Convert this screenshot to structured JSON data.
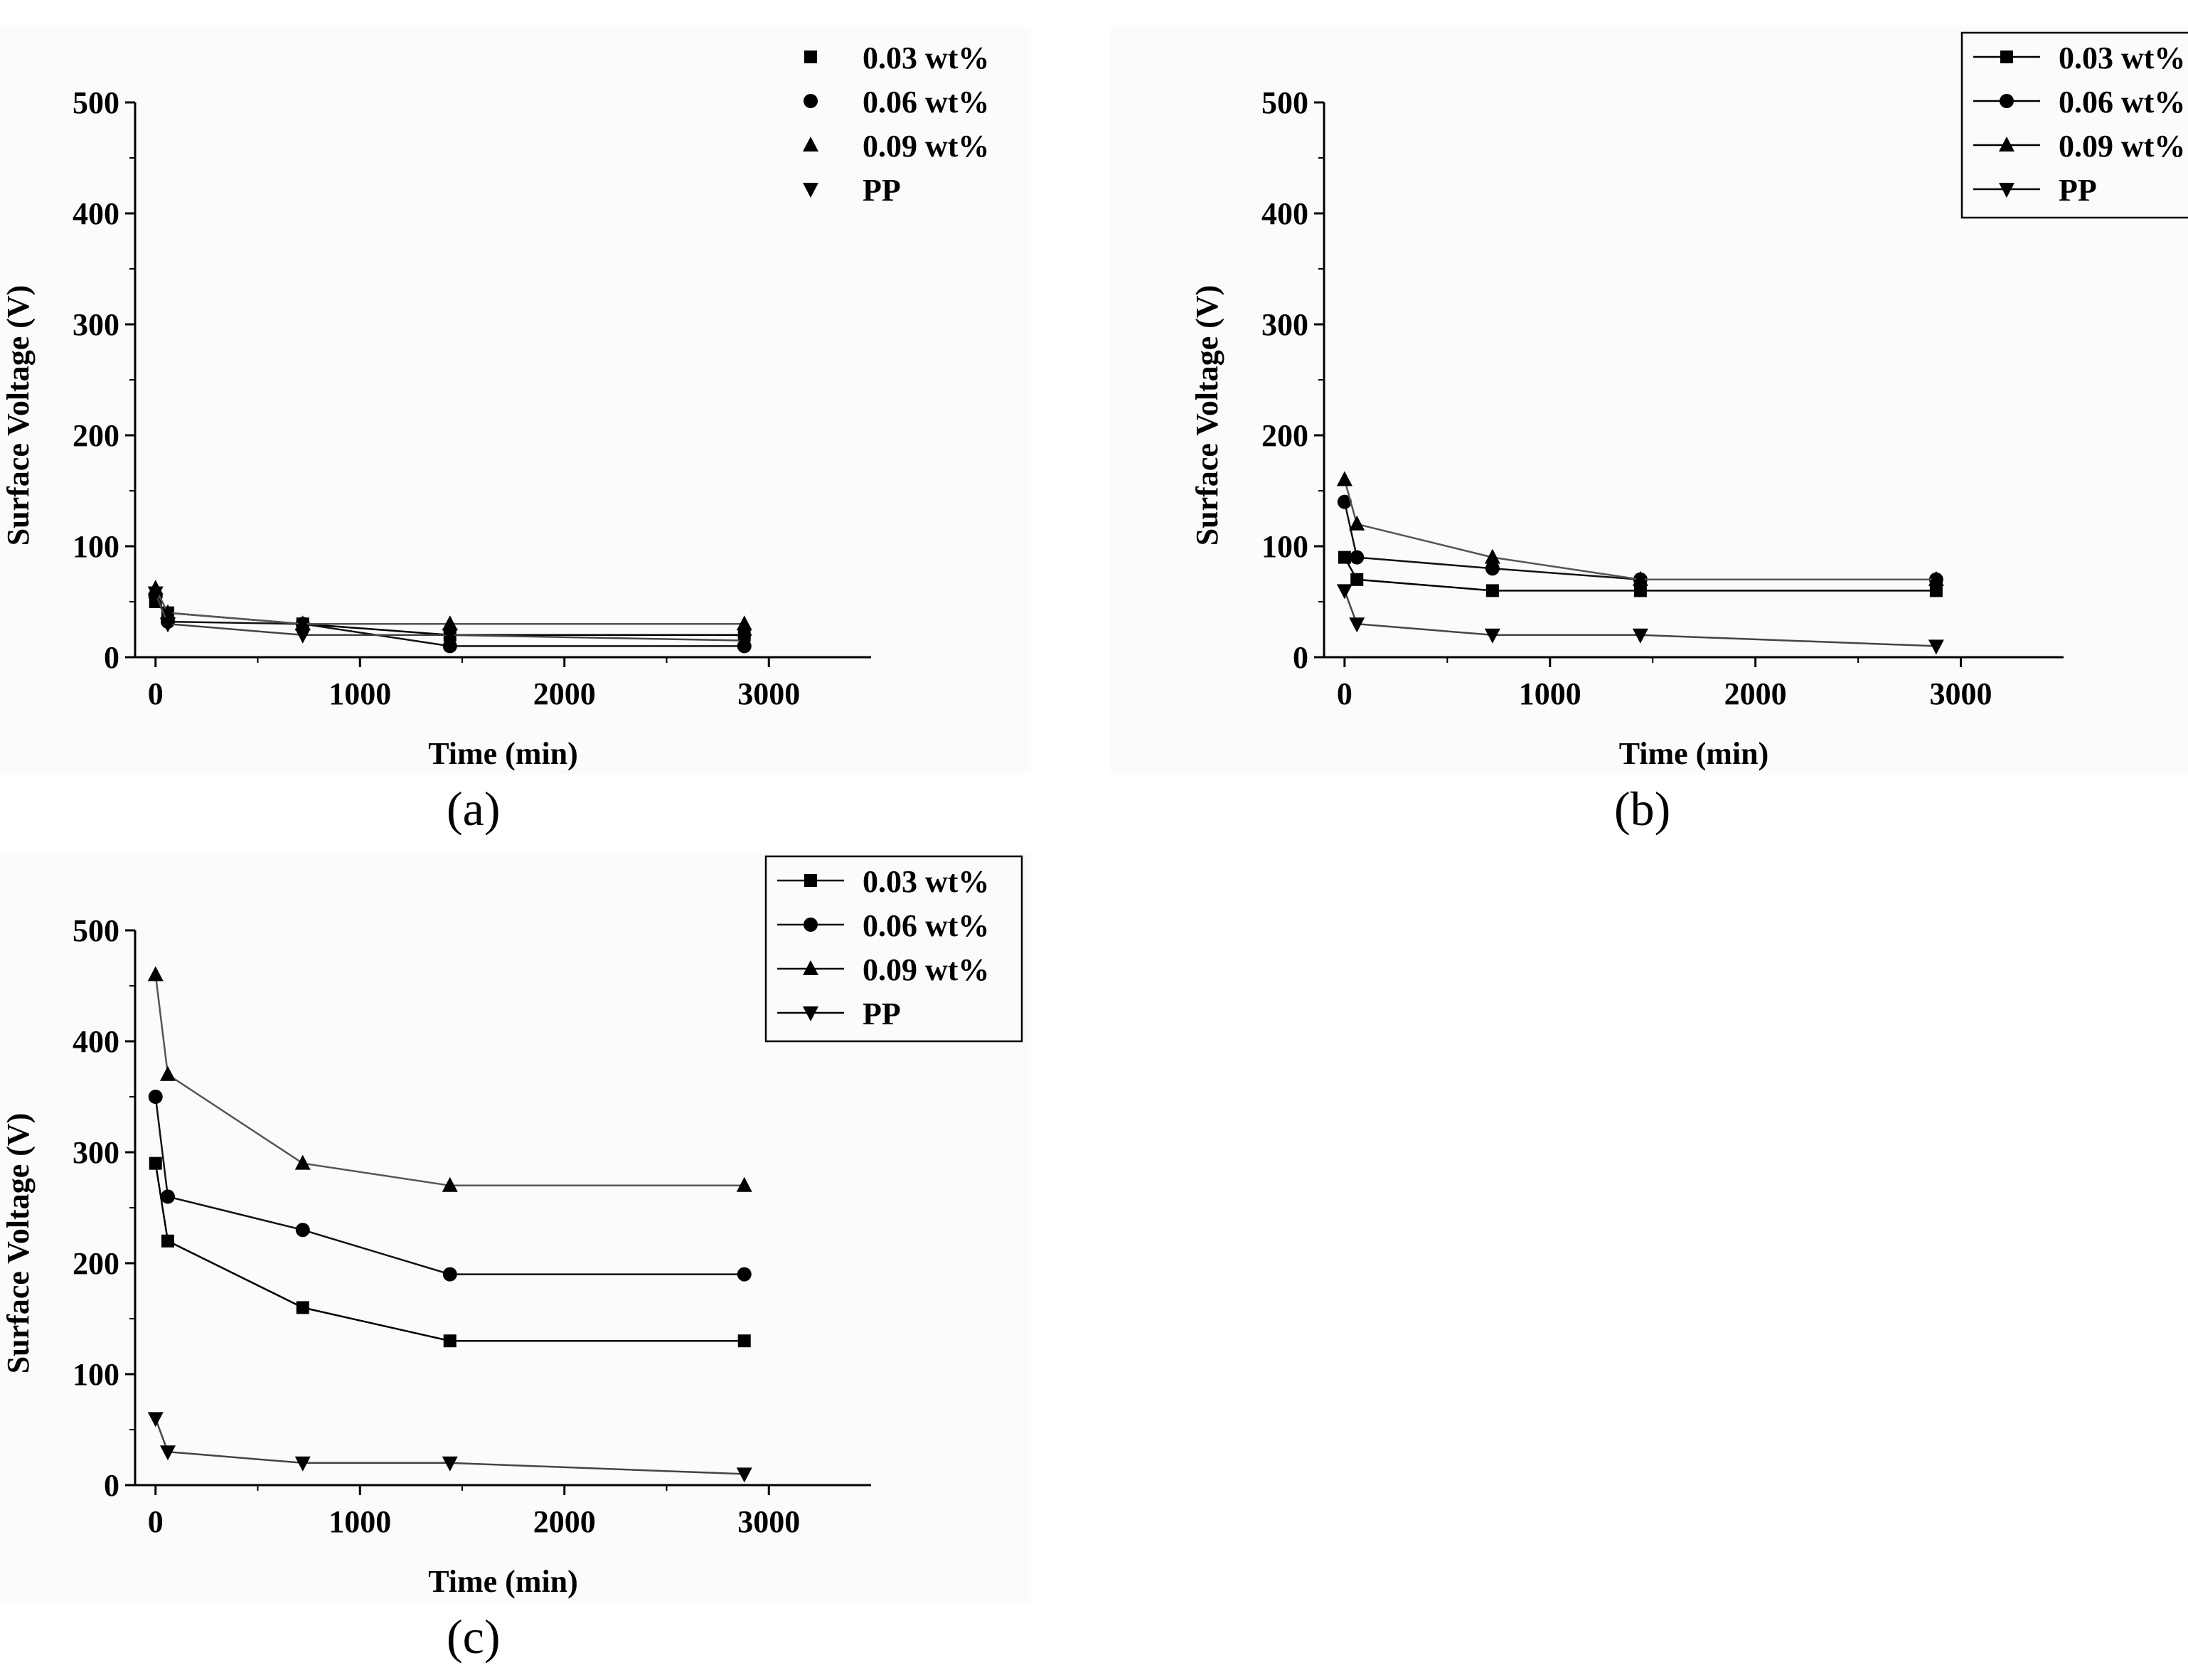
{
  "chart_data": [
    {
      "id": "a",
      "type": "line",
      "panel_label": "(a)",
      "xlabel": "Time (min)",
      "ylabel": "Surface Voltage (V)",
      "xlim": [
        -100,
        3500
      ],
      "ylim": [
        0,
        500
      ],
      "xticks": [
        0,
        1000,
        2000,
        3000
      ],
      "yticks": [
        0,
        100,
        200,
        300,
        400,
        500
      ],
      "legend_frame": false,
      "series": [
        {
          "name": "0.03 wt%",
          "marker": "square",
          "x": [
            0,
            60,
            720,
            1440,
            2880
          ],
          "y": [
            50,
            40,
            30,
            20,
            20
          ]
        },
        {
          "name": "0.06 wt%",
          "marker": "circle",
          "x": [
            0,
            60,
            720,
            1440,
            2880
          ],
          "y": [
            55,
            32,
            30,
            10,
            10
          ]
        },
        {
          "name": "0.09 wt%",
          "marker": "triangle-up",
          "x": [
            0,
            60,
            720,
            1440,
            2880
          ],
          "y": [
            62,
            40,
            30,
            30,
            30
          ]
        },
        {
          "name": "PP",
          "marker": "triangle-down",
          "x": [
            0,
            60,
            720,
            1440,
            2880
          ],
          "y": [
            58,
            30,
            20,
            20,
            15
          ]
        }
      ]
    },
    {
      "id": "b",
      "type": "line",
      "panel_label": "(b)",
      "xlabel": "Time (min)",
      "ylabel": "Surface Voltage (V)",
      "xlim": [
        -100,
        3500
      ],
      "ylim": [
        0,
        500
      ],
      "xticks": [
        0,
        1000,
        2000,
        3000
      ],
      "yticks": [
        0,
        100,
        200,
        300,
        400,
        500
      ],
      "legend_frame": true,
      "series": [
        {
          "name": "0.03 wt%",
          "marker": "square",
          "x": [
            0,
            60,
            720,
            1440,
            2880
          ],
          "y": [
            90,
            70,
            60,
            60,
            60
          ]
        },
        {
          "name": "0.06 wt%",
          "marker": "circle",
          "x": [
            0,
            60,
            720,
            1440,
            2880
          ],
          "y": [
            140,
            90,
            80,
            70,
            70
          ]
        },
        {
          "name": "0.09 wt%",
          "marker": "triangle-up",
          "x": [
            0,
            60,
            720,
            1440,
            2880
          ],
          "y": [
            160,
            120,
            90,
            70,
            70
          ]
        },
        {
          "name": "PP",
          "marker": "triangle-down",
          "x": [
            0,
            60,
            720,
            1440,
            2880
          ],
          "y": [
            60,
            30,
            20,
            20,
            10
          ]
        }
      ]
    },
    {
      "id": "c",
      "type": "line",
      "panel_label": "(c)",
      "xlabel": "Time (min)",
      "ylabel": "Surface Voltage (V)",
      "xlim": [
        -100,
        3500
      ],
      "ylim": [
        0,
        500
      ],
      "xticks": [
        0,
        1000,
        2000,
        3000
      ],
      "yticks": [
        0,
        100,
        200,
        300,
        400,
        500
      ],
      "legend_frame": true,
      "series": [
        {
          "name": "0.03 wt%",
          "marker": "square",
          "x": [
            0,
            60,
            720,
            1440,
            2880
          ],
          "y": [
            290,
            220,
            160,
            130,
            130
          ]
        },
        {
          "name": "0.06 wt%",
          "marker": "circle",
          "x": [
            0,
            60,
            720,
            1440,
            2880
          ],
          "y": [
            350,
            260,
            230,
            190,
            190
          ]
        },
        {
          "name": "0.09 wt%",
          "marker": "triangle-up",
          "x": [
            0,
            60,
            720,
            1440,
            2880
          ],
          "y": [
            460,
            370,
            290,
            270,
            270
          ]
        },
        {
          "name": "PP",
          "marker": "triangle-down",
          "x": [
            0,
            60,
            720,
            1440,
            2880
          ],
          "y": [
            60,
            30,
            20,
            20,
            10
          ]
        }
      ]
    }
  ]
}
